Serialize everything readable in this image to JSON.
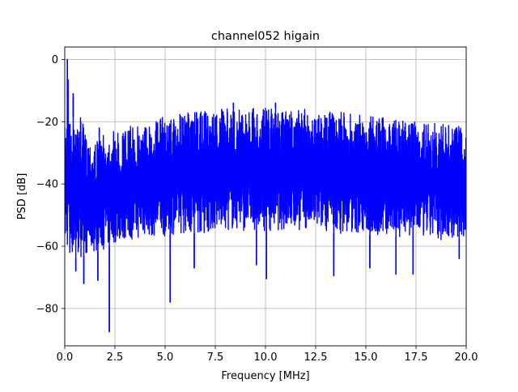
{
  "chart_data": {
    "type": "line",
    "title": "channel052 higain",
    "xlabel": "Frequency [MHz]",
    "ylabel": "PSD [dB]",
    "xlim": [
      0,
      20
    ],
    "ylim": [
      -92,
      4
    ],
    "xticks": [
      0,
      2.5,
      5,
      7.5,
      10,
      12.5,
      15,
      17.5,
      20
    ],
    "xtick_labels": [
      "0.0",
      "2.5",
      "5.0",
      "7.5",
      "10.0",
      "12.5",
      "15.0",
      "17.5",
      "20.0"
    ],
    "yticks": [
      -80,
      -60,
      -40,
      -20,
      0
    ],
    "ytick_labels": [
      "−80",
      "−60",
      "−40",
      "−20",
      "0"
    ],
    "grid": true,
    "series": [
      {
        "color": "#0000ff",
        "upper_envelope": {
          "x": [
            0.0,
            0.13,
            0.18,
            0.25,
            0.35,
            0.45,
            0.55,
            0.65,
            0.8,
            1.0,
            1.2,
            1.5,
            2.0,
            2.5,
            3.0,
            3.5,
            4.0,
            4.5,
            5.0,
            5.5,
            6.0,
            6.5,
            7.0,
            7.5,
            8.0,
            8.5,
            9.0,
            9.5,
            10.0,
            10.5,
            11.0,
            11.5,
            12.0,
            12.5,
            13.0,
            13.5,
            14.0,
            14.5,
            15.0,
            15.5,
            16.0,
            16.5,
            17.0,
            17.5,
            18.0,
            18.5,
            19.0,
            19.5,
            20.0
          ],
          "y": [
            -22,
            -12,
            0,
            -16,
            -26,
            -15,
            -11,
            -22,
            -18,
            -23,
            -24,
            -26,
            -24,
            -23,
            -22,
            -21,
            -20,
            -19,
            -18,
            -18,
            -17,
            -17,
            -16.5,
            -16,
            -16,
            -15.5,
            -15.5,
            -15.5,
            -15.5,
            -15.5,
            -16,
            -16,
            -16,
            -16,
            -16.5,
            -17,
            -17,
            -17.5,
            -18,
            -18,
            -18.5,
            -19,
            -19.5,
            -20,
            -20,
            -20.5,
            -21,
            -21,
            -21.5
          ]
        },
        "lower_envelope": {
          "x": [
            0.0,
            0.5,
            1.0,
            1.5,
            2.0,
            2.5,
            3.0,
            3.5,
            4.0,
            4.5,
            5.0,
            5.5,
            6.0,
            6.5,
            7.0,
            7.5,
            8.0,
            8.5,
            9.0,
            9.5,
            10.0,
            10.5,
            11.0,
            11.5,
            12.0,
            12.5,
            13.0,
            13.5,
            14.0,
            14.5,
            15.0,
            15.5,
            16.0,
            16.5,
            17.0,
            17.5,
            18.0,
            18.5,
            19.0,
            19.5,
            20.0
          ],
          "y": [
            -60,
            -64,
            -63,
            -62,
            -61,
            -59,
            -58,
            -58,
            -57,
            -57,
            -57,
            -56,
            -56,
            -56,
            -56,
            -55,
            -55,
            -55,
            -55,
            -55,
            -55,
            -55,
            -55,
            -55,
            -55,
            -55,
            -55,
            -56,
            -56,
            -56,
            -56,
            -57,
            -57,
            -57,
            -57,
            -57,
            -58,
            -58,
            -58,
            -58,
            -58
          ]
        },
        "notable_dips": [
          {
            "x": 0.25,
            "y": -62
          },
          {
            "x": 0.55,
            "y": -68
          },
          {
            "x": 0.95,
            "y": -72
          },
          {
            "x": 1.65,
            "y": -71
          },
          {
            "x": 2.22,
            "y": -87.5
          },
          {
            "x": 5.25,
            "y": -78
          },
          {
            "x": 6.45,
            "y": -67
          },
          {
            "x": 9.55,
            "y": -66
          },
          {
            "x": 10.05,
            "y": -70.5
          },
          {
            "x": 13.4,
            "y": -69.5
          },
          {
            "x": 15.2,
            "y": -67
          },
          {
            "x": 16.5,
            "y": -69
          },
          {
            "x": 17.35,
            "y": -69
          },
          {
            "x": 19.65,
            "y": -64
          }
        ],
        "notable_peaks": [
          {
            "x": 0.13,
            "y": 0
          },
          {
            "x": 0.42,
            "y": -11
          },
          {
            "x": 1.72,
            "y": -22
          },
          {
            "x": 8.4,
            "y": -14
          },
          {
            "x": 10.5,
            "y": -14
          }
        ]
      }
    ]
  }
}
